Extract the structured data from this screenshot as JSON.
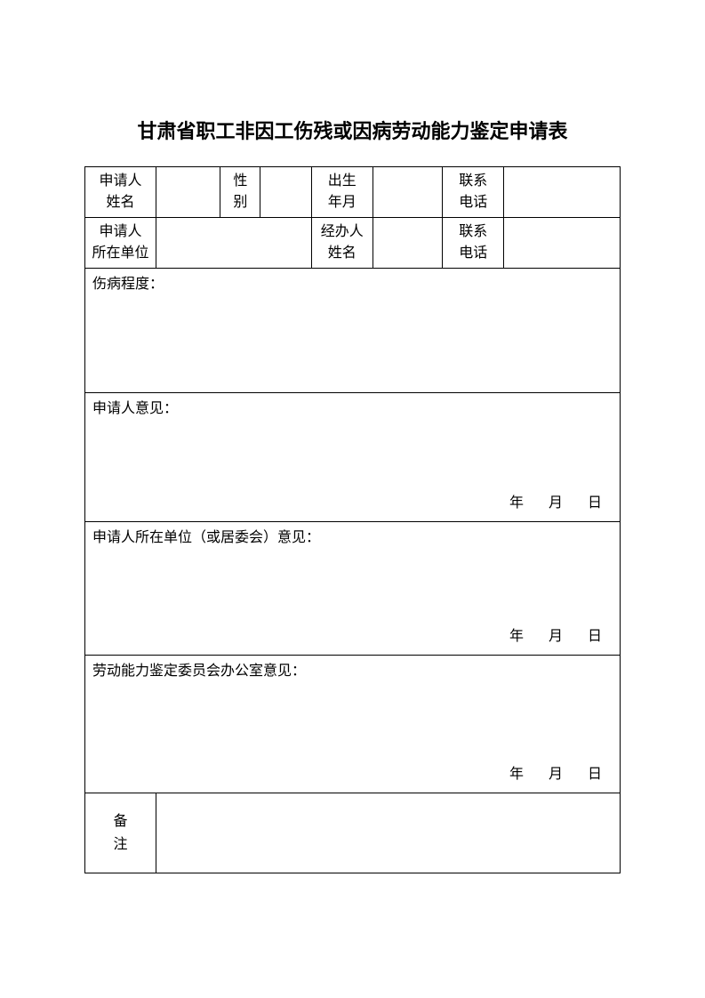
{
  "title": "甘肃省职工非因工伤残或因病劳动能力鉴定申请表",
  "row1": {
    "applicant_name_label": "申请人\n姓名",
    "gender_label": "性\n别",
    "birth_label": "出生\n年月",
    "phone_label": "联系\n电话"
  },
  "row2": {
    "applicant_unit_label": "申请人\n所在单位",
    "handler_name_label": "经办人\n姓名",
    "phone_label": "联系\n电话"
  },
  "sections": {
    "injury_degree": "伤病程度：",
    "applicant_opinion": "申请人意见：",
    "unit_opinion": "申请人所在单位（或居委会）意见：",
    "committee_opinion": "劳动能力鉴定委员会办公室意见："
  },
  "date": {
    "year": "年",
    "month": "月",
    "day": "日"
  },
  "remarks_label": "备\n注",
  "style": {
    "title_fontsize": 22,
    "cell_fontsize": 16,
    "border_color": "#000000",
    "bg_color": "#ffffff"
  }
}
